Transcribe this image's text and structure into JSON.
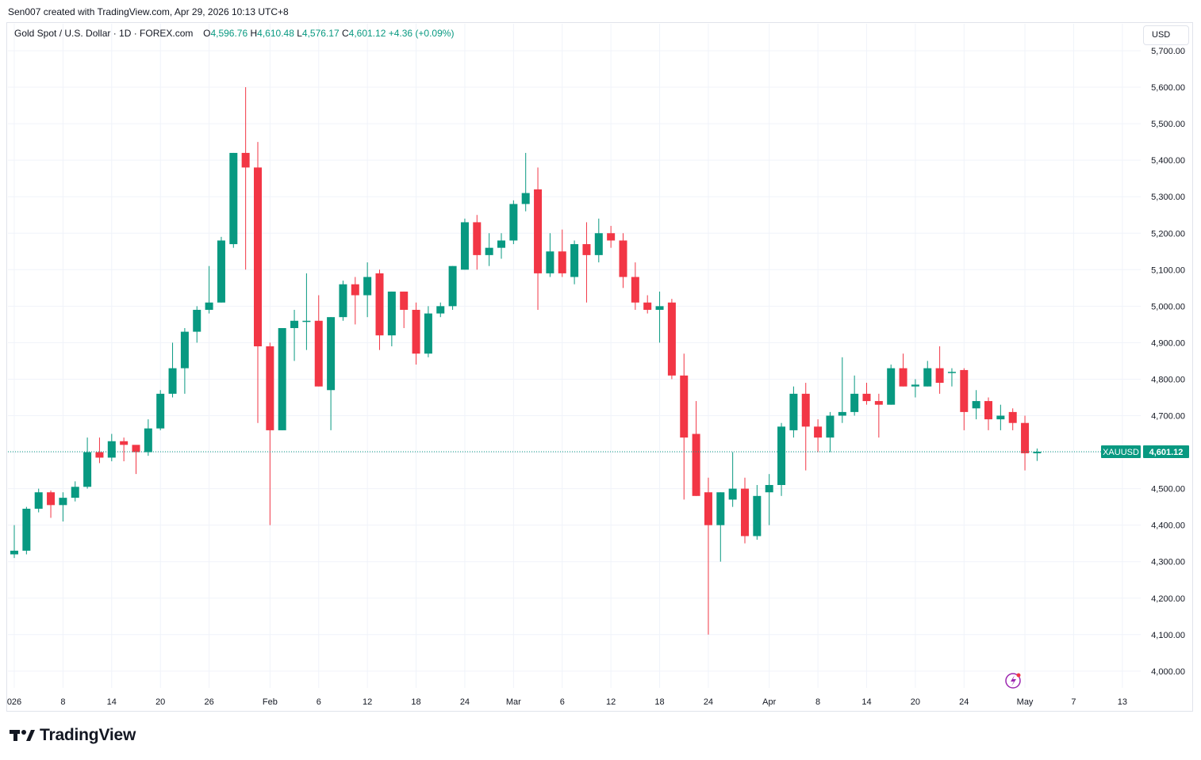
{
  "header": {
    "created_by": "Sen007 created with TradingView.com, Apr 29, 2026 10:13 UTC+8"
  },
  "legend": {
    "symbol_title": "Gold Spot / U.S. Dollar · 1D · FOREX.com",
    "open_label": "O",
    "open_value": "4,596.76",
    "high_label": "H",
    "high_value": "4,610.48",
    "low_label": "L",
    "low_value": "4,576.17",
    "close_label": "C",
    "close_value": "4,601.12",
    "change": "+4.36 (+0.09%)"
  },
  "currency": "USD",
  "brand": "TradingView",
  "colors": {
    "up": "#089981",
    "down": "#f23645",
    "grid": "#f0f3fa",
    "text": "#131722"
  },
  "chart_data": {
    "type": "candlestick",
    "title": "Gold Spot / U.S. Dollar · 1D · FOREX.com",
    "symbol": "XAUUSD",
    "ylim": [
      3940,
      5750
    ],
    "y_ticks": [
      4000,
      4100,
      4200,
      4300,
      4400,
      4500,
      4600,
      4700,
      4800,
      4900,
      5000,
      5100,
      5200,
      5300,
      5400,
      5500,
      5600,
      5700
    ],
    "y_tick_labels": [
      "4,000.00",
      "4,100.00",
      "4,200.00",
      "4,300.00",
      "4,400.00",
      "4,500.00",
      "4,600.00",
      "4,700.00",
      "4,800.00",
      "4,900.00",
      "5,000.00",
      "5,100.00",
      "5,200.00",
      "5,300.00",
      "5,400.00",
      "5,500.00",
      "5,600.00",
      "5,700.00"
    ],
    "x_ticks": [
      {
        "label": "026",
        "bar": 0
      },
      {
        "label": "8",
        "bar": 4
      },
      {
        "label": "14",
        "bar": 8
      },
      {
        "label": "20",
        "bar": 12
      },
      {
        "label": "26",
        "bar": 16
      },
      {
        "label": "Feb",
        "bar": 21
      },
      {
        "label": "6",
        "bar": 25
      },
      {
        "label": "12",
        "bar": 29
      },
      {
        "label": "18",
        "bar": 33
      },
      {
        "label": "24",
        "bar": 37
      },
      {
        "label": "Mar",
        "bar": 41
      },
      {
        "label": "6",
        "bar": 45
      },
      {
        "label": "12",
        "bar": 49
      },
      {
        "label": "18",
        "bar": 53
      },
      {
        "label": "24",
        "bar": 57
      },
      {
        "label": "Apr",
        "bar": 62
      },
      {
        "label": "8",
        "bar": 66
      },
      {
        "label": "14",
        "bar": 70
      },
      {
        "label": "20",
        "bar": 74
      },
      {
        "label": "24",
        "bar": 78
      },
      {
        "label": "May",
        "bar": 83
      },
      {
        "label": "7",
        "bar": 87
      },
      {
        "label": "13",
        "bar": 91
      }
    ],
    "last_price": 4601.12,
    "last_price_label": "4,601.12",
    "ohlc": [
      [
        4320,
        4400,
        4310,
        4330
      ],
      [
        4330,
        4450,
        4320,
        4445
      ],
      [
        4445,
        4500,
        4435,
        4490
      ],
      [
        4490,
        4495,
        4420,
        4455
      ],
      [
        4455,
        4490,
        4410,
        4475
      ],
      [
        4475,
        4520,
        4465,
        4505
      ],
      [
        4505,
        4640,
        4500,
        4600
      ],
      [
        4600,
        4640,
        4570,
        4585
      ],
      [
        4585,
        4650,
        4575,
        4630
      ],
      [
        4630,
        4640,
        4575,
        4620
      ],
      [
        4620,
        4615,
        4540,
        4600
      ],
      [
        4600,
        4690,
        4590,
        4665
      ],
      [
        4665,
        4770,
        4660,
        4760
      ],
      [
        4760,
        4900,
        4750,
        4830
      ],
      [
        4830,
        4940,
        4760,
        4930
      ],
      [
        4930,
        5000,
        4900,
        4990
      ],
      [
        4990,
        5110,
        4980,
        5010
      ],
      [
        5010,
        5190,
        5010,
        5180
      ],
      [
        5170,
        5420,
        5160,
        5420
      ],
      [
        5420,
        5600,
        5100,
        5380
      ],
      [
        5380,
        5450,
        4680,
        4890
      ],
      [
        4890,
        4900,
        4400,
        4660
      ],
      [
        4660,
        4940,
        4660,
        4940
      ],
      [
        4940,
        4990,
        4850,
        4960
      ],
      [
        4960,
        5090,
        4880,
        4960
      ],
      [
        4960,
        5030,
        4780,
        4780
      ],
      [
        4770,
        4970,
        4660,
        4970
      ],
      [
        4970,
        5070,
        4960,
        5060
      ],
      [
        5060,
        5080,
        4950,
        5030
      ],
      [
        5030,
        5120,
        4970,
        5080
      ],
      [
        5090,
        5100,
        4880,
        4920
      ],
      [
        4920,
        5040,
        4890,
        5040
      ],
      [
        5040,
        5040,
        4940,
        4990
      ],
      [
        4990,
        5010,
        4840,
        4870
      ],
      [
        4870,
        5000,
        4860,
        4980
      ],
      [
        4980,
        5010,
        4970,
        5000
      ],
      [
        5000,
        5110,
        4990,
        5110
      ],
      [
        5100,
        5240,
        5100,
        5230
      ],
      [
        5230,
        5250,
        5100,
        5140
      ],
      [
        5140,
        5200,
        5110,
        5160
      ],
      [
        5160,
        5200,
        5130,
        5180
      ],
      [
        5180,
        5290,
        5170,
        5280
      ],
      [
        5280,
        5420,
        5260,
        5310
      ],
      [
        5320,
        5380,
        4990,
        5090
      ],
      [
        5090,
        5200,
        5080,
        5150
      ],
      [
        5150,
        5210,
        5080,
        5090
      ],
      [
        5080,
        5180,
        5060,
        5170
      ],
      [
        5170,
        5230,
        5010,
        5140
      ],
      [
        5140,
        5240,
        5120,
        5200
      ],
      [
        5200,
        5220,
        5160,
        5180
      ],
      [
        5180,
        5200,
        5050,
        5080
      ],
      [
        5080,
        5120,
        4990,
        5010
      ],
      [
        5010,
        5030,
        4980,
        4990
      ],
      [
        4990,
        5040,
        4900,
        5000
      ],
      [
        5010,
        5020,
        4800,
        4810
      ],
      [
        4810,
        4870,
        4470,
        4640
      ],
      [
        4650,
        4740,
        4480,
        4480
      ],
      [
        4490,
        4530,
        4100,
        4400
      ],
      [
        4400,
        4490,
        4300,
        4490
      ],
      [
        4470,
        4600,
        4450,
        4500
      ],
      [
        4500,
        4530,
        4350,
        4370
      ],
      [
        4370,
        4510,
        4360,
        4480
      ],
      [
        4490,
        4540,
        4400,
        4510
      ],
      [
        4510,
        4680,
        4480,
        4670
      ],
      [
        4660,
        4780,
        4640,
        4760
      ],
      [
        4760,
        4790,
        4550,
        4670
      ],
      [
        4670,
        4690,
        4600,
        4640
      ],
      [
        4640,
        4710,
        4600,
        4700
      ],
      [
        4700,
        4860,
        4680,
        4710
      ],
      [
        4710,
        4810,
        4700,
        4760
      ],
      [
        4760,
        4790,
        4730,
        4740
      ],
      [
        4740,
        4760,
        4640,
        4730
      ],
      [
        4730,
        4840,
        4730,
        4830
      ],
      [
        4830,
        4870,
        4780,
        4780
      ],
      [
        4780,
        4800,
        4750,
        4785
      ],
      [
        4780,
        4850,
        4780,
        4830
      ],
      [
        4830,
        4890,
        4760,
        4790
      ],
      [
        4820,
        4830,
        4780,
        4820
      ],
      [
        4825,
        4830,
        4660,
        4710
      ],
      [
        4720,
        4770,
        4690,
        4740
      ],
      [
        4740,
        4750,
        4660,
        4690
      ],
      [
        4690,
        4730,
        4660,
        4700
      ],
      [
        4710,
        4720,
        4660,
        4680
      ],
      [
        4680,
        4700,
        4550,
        4597
      ],
      [
        4597,
        4610,
        4576,
        4601
      ]
    ]
  }
}
